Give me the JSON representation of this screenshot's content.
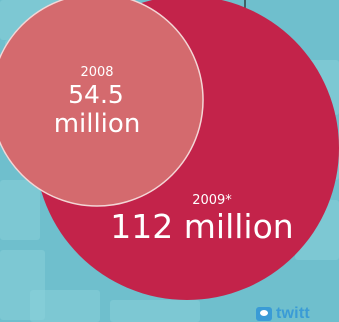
{
  "chart_data": {
    "type": "bubble",
    "series": [
      {
        "year": "2008",
        "value": 54.5,
        "value_label": "54.5",
        "unit_label": "million",
        "color": "#d46a6e"
      },
      {
        "year": "2009*",
        "value": 112,
        "value_label": "112 million",
        "color": "#c3234a"
      }
    ]
  },
  "brand": {
    "text": "twitt",
    "icon": "twitter-bird-icon"
  },
  "colors": {
    "background": "#6fbfcd",
    "bubble_2008": "#d46a6e",
    "bubble_2009": "#c3234a"
  }
}
